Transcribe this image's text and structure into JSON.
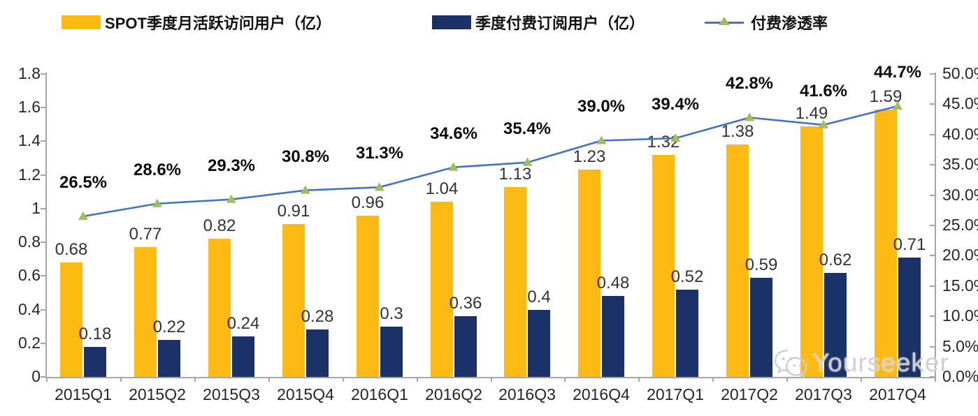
{
  "legend": {
    "items": [
      {
        "label": "SPOT季度月活跃访问用户（亿）",
        "color": "#fcba12",
        "type": "bar"
      },
      {
        "label": "季度付费订阅用户（亿）",
        "color": "#1a3268",
        "type": "bar"
      },
      {
        "label": "付费渗透率",
        "color": "#4472c4",
        "marker_color": "#9fbf5a",
        "type": "line"
      }
    ]
  },
  "watermark": {
    "text": "Yourseeker",
    "icon": "wechat-icon"
  },
  "chart_data": {
    "type": "bar",
    "subtype": "grouped-bars-with-line-overlay",
    "categories": [
      "2015Q1",
      "2015Q2",
      "2015Q3",
      "2015Q4",
      "2016Q1",
      "2016Q2",
      "2016Q3",
      "2016Q4",
      "2017Q1",
      "2017Q2",
      "2017Q3",
      "2017Q4"
    ],
    "series": [
      {
        "name": "SPOT季度月活跃访问用户（亿）",
        "type": "bar",
        "axis": "left",
        "color": "#fcba12",
        "values": [
          0.68,
          0.77,
          0.82,
          0.91,
          0.96,
          1.04,
          1.13,
          1.23,
          1.32,
          1.38,
          1.49,
          1.59
        ],
        "labels": [
          "0.68",
          "0.77",
          "0.82",
          "0.91",
          "0.96",
          "1.04",
          "1.13",
          "1.23",
          "1.32",
          "1.38",
          "1.49",
          "1.59"
        ]
      },
      {
        "name": "季度付费订阅用户（亿）",
        "type": "bar",
        "axis": "left",
        "color": "#1a3268",
        "values": [
          0.18,
          0.22,
          0.24,
          0.28,
          0.3,
          0.36,
          0.4,
          0.48,
          0.52,
          0.59,
          0.62,
          0.71
        ],
        "labels": [
          "0.18",
          "0.22",
          "0.24",
          "0.28",
          "0.3",
          "0.36",
          "0.4",
          "0.48",
          "0.52",
          "0.59",
          "0.62",
          "0.71"
        ]
      },
      {
        "name": "付费渗透率",
        "type": "line",
        "axis": "right",
        "color": "#4472c4",
        "marker": "triangle",
        "marker_color": "#9fbf5a",
        "values": [
          26.5,
          28.6,
          29.3,
          30.8,
          31.3,
          34.6,
          35.4,
          39.0,
          39.4,
          42.8,
          41.6,
          44.7
        ],
        "labels": [
          "26.5%",
          "28.6%",
          "29.3%",
          "30.8%",
          "31.3%",
          "34.6%",
          "35.4%",
          "39.0%",
          "39.4%",
          "42.8%",
          "41.6%",
          "44.7%"
        ]
      }
    ],
    "left_axis": {
      "min": 0,
      "max": 1.8,
      "step": 0.2,
      "tick_labels": [
        "0",
        "0.2",
        "0.4",
        "0.6",
        "0.8",
        "1",
        "1.2",
        "1.4",
        "1.6",
        "1.8"
      ]
    },
    "right_axis": {
      "min": 0,
      "max": 50,
      "step": 5,
      "tick_labels": [
        "0.0%",
        "5.0%",
        "10.0%",
        "15.0%",
        "20.0%",
        "25.0%",
        "30.0%",
        "35.0%",
        "40.0%",
        "45.0%",
        "50.0%"
      ]
    },
    "grid": false,
    "legend_position": "top",
    "title": "",
    "xlabel": "",
    "ylabel": ""
  }
}
